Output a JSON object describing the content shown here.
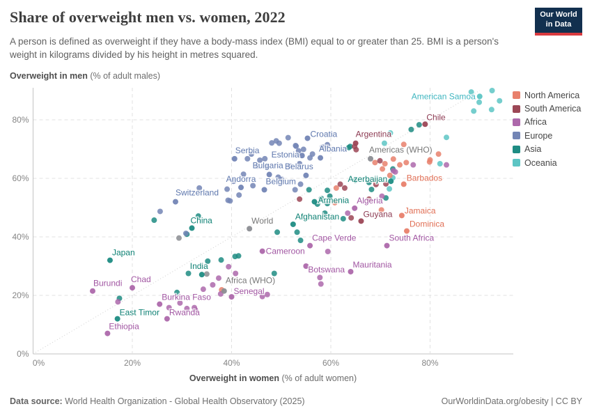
{
  "header": {
    "title": "Share of overweight men vs. women, 2022",
    "subtitle": "A person is defined as overweight if they have a body-mass index (BMI) equal to or greater than 25. BMI is a person's weight in kilograms divided by his height in metres squared.",
    "logo_line1": "Our World",
    "logo_line2": "in Data",
    "logo_bg": "#12304f",
    "logo_accent": "#d93a3f"
  },
  "footer": {
    "source_prefix": "Data source:",
    "source_text": " World Health Organization - Global Health Observatory (2025)",
    "license_text": "OurWorldinData.org/obesity | CC BY"
  },
  "chart_data": {
    "type": "scatter",
    "title": "Share of overweight men vs. women, 2022",
    "xlabel_bold": "Overweight in women",
    "xlabel_rest": " (% of adult women)",
    "ylabel_bold": "Overweight in men",
    "ylabel_rest": " (% of adult males)",
    "xlim": [
      0,
      95
    ],
    "ylim": [
      0,
      91
    ],
    "xticks": [
      0,
      20,
      40,
      60,
      80
    ],
    "yticks": [
      0,
      20,
      40,
      60,
      80
    ],
    "tick_suffix": "%",
    "grid": true,
    "identity_line": true,
    "legend_position": "right",
    "colors": {
      "NA": {
        "dot": "#e8806c",
        "label": "#e06e54"
      },
      "SA": {
        "dot": "#9c4756",
        "label": "#8c3a52"
      },
      "AF": {
        "dot": "#ad68ab",
        "label": "#a156a2"
      },
      "EU": {
        "dot": "#7385b5",
        "label": "#5e77ad"
      },
      "AS": {
        "dot": "#1e8c83",
        "label": "#0e8174"
      },
      "OC": {
        "dot": "#5dc5c4",
        "label": "#3fb6c0"
      },
      "AGG": {
        "dot": "#8b8d92",
        "label": "#777777"
      }
    },
    "legend": [
      {
        "code": "NA",
        "label": "North America"
      },
      {
        "code": "SA",
        "label": "South America"
      },
      {
        "code": "AF",
        "label": "Africa"
      },
      {
        "code": "EU",
        "label": "Europe"
      },
      {
        "code": "AS",
        "label": "Asia"
      },
      {
        "code": "OC",
        "label": "Oceania"
      }
    ],
    "points": [
      [
        92.5,
        90,
        "OC"
      ],
      [
        88.3,
        89.5,
        "OC"
      ],
      [
        94,
        86.5,
        "OC"
      ],
      [
        89.9,
        86,
        "OC"
      ],
      [
        88.8,
        83,
        "OC"
      ],
      [
        92.4,
        83.5,
        "OC"
      ],
      [
        83.3,
        74,
        "OC"
      ],
      [
        82,
        65,
        "OC"
      ],
      [
        72,
        75.5,
        "OC"
      ],
      [
        70.8,
        72,
        "OC"
      ],
      [
        71.8,
        56.4,
        "OC"
      ],
      [
        72.5,
        60.2,
        "OC"
      ],
      [
        77.8,
        78.3,
        "AS"
      ],
      [
        76.2,
        76.7,
        "AS"
      ],
      [
        63.9,
        70.9,
        "AS"
      ],
      [
        63.6,
        70.5,
        "AS"
      ],
      [
        72.5,
        63.2,
        "AS"
      ],
      [
        64.9,
        59.3,
        "AS"
      ],
      [
        67.7,
        58.6,
        "AS"
      ],
      [
        68.2,
        56.2,
        "AS"
      ],
      [
        71.1,
        53.3,
        "AS"
      ],
      [
        59.8,
        53.9,
        "AS"
      ],
      [
        58.1,
        53.1,
        "AS"
      ],
      [
        59.3,
        51.4,
        "AS"
      ],
      [
        59.3,
        55.9,
        "AS"
      ],
      [
        57.3,
        51.2,
        "AS"
      ],
      [
        62.5,
        46.2,
        "AS"
      ],
      [
        58.8,
        48.1,
        "AS"
      ],
      [
        55.6,
        56.1,
        "AS"
      ],
      [
        49.2,
        41.6,
        "AS"
      ],
      [
        53.2,
        41.6,
        "AS"
      ],
      [
        53.9,
        38.8,
        "AS"
      ],
      [
        33.3,
        47.1,
        "AS"
      ],
      [
        31,
        40.9,
        "AS"
      ],
      [
        24.4,
        45.7,
        "AS"
      ],
      [
        31.3,
        27.5,
        "AS"
      ],
      [
        35.2,
        31.7,
        "AS"
      ],
      [
        37.9,
        32.1,
        "AS"
      ],
      [
        40.7,
        33.3,
        "AS"
      ],
      [
        41.4,
        33.5,
        "AS"
      ],
      [
        48.6,
        27.5,
        "AS"
      ],
      [
        17.4,
        19,
        "AS"
      ],
      [
        29,
        21,
        "AS"
      ],
      [
        74.7,
        71.6,
        "NA"
      ],
      [
        81.7,
        68.3,
        "NA"
      ],
      [
        80,
        66.3,
        "NA"
      ],
      [
        68.9,
        65.4,
        "NA"
      ],
      [
        70.9,
        65,
        "NA"
      ],
      [
        72.6,
        66.6,
        "NA"
      ],
      [
        73.9,
        64.6,
        "NA"
      ],
      [
        75.2,
        65.4,
        "NA"
      ],
      [
        79.9,
        65.6,
        "NA"
      ],
      [
        70.4,
        63.2,
        "NA"
      ],
      [
        71.9,
        61,
        "NA"
      ],
      [
        69,
        59,
        "NA"
      ],
      [
        61.1,
        56.7,
        "NA"
      ],
      [
        60.8,
        51.7,
        "NA"
      ],
      [
        70.2,
        49.2,
        "NA"
      ],
      [
        38,
        21.9,
        "NA"
      ],
      [
        64.8,
        70.9,
        "SA"
      ],
      [
        65.1,
        69.8,
        "SA"
      ],
      [
        69.9,
        66,
        "SA"
      ],
      [
        71.1,
        58.1,
        "SA"
      ],
      [
        69.1,
        57.9,
        "SA"
      ],
      [
        67.7,
        52.9,
        "SA"
      ],
      [
        61.9,
        58,
        "SA"
      ],
      [
        62.8,
        56.7,
        "SA"
      ],
      [
        53.7,
        52.9,
        "SA"
      ],
      [
        64.1,
        46.5,
        "SA"
      ],
      [
        76.6,
        64.6,
        "AF"
      ],
      [
        83.3,
        64.6,
        "AF"
      ],
      [
        73,
        62.2,
        "AF"
      ],
      [
        72.6,
        62.6,
        "AF"
      ],
      [
        70.3,
        53.9,
        "AF"
      ],
      [
        59.4,
        35,
        "AF"
      ],
      [
        57.8,
        26.1,
        "AF"
      ],
      [
        58,
        23.9,
        "AF"
      ],
      [
        63.4,
        48.1,
        "AF"
      ],
      [
        39.4,
        29.8,
        "AF"
      ],
      [
        40.8,
        27.5,
        "AF"
      ],
      [
        36.2,
        23.6,
        "AF"
      ],
      [
        34.3,
        22.1,
        "AF"
      ],
      [
        37.8,
        20.5,
        "AF"
      ],
      [
        37.4,
        25.9,
        "AF"
      ],
      [
        32.7,
        15,
        "AF"
      ],
      [
        27.4,
        15.8,
        "AF"
      ],
      [
        29.6,
        17.4,
        "AF"
      ],
      [
        31,
        15.5,
        "AF"
      ],
      [
        32.5,
        15.8,
        "AF"
      ],
      [
        17.1,
        17.8,
        "AF"
      ],
      [
        46.2,
        19.6,
        "AF"
      ],
      [
        47.2,
        20.3,
        "AF"
      ],
      [
        49,
        72.8,
        "EU"
      ],
      [
        51.4,
        73.9,
        "EU"
      ],
      [
        53,
        71,
        "EU"
      ],
      [
        48.1,
        72.1,
        "EU"
      ],
      [
        49.6,
        72,
        "EU"
      ],
      [
        52.9,
        71.2,
        "EU"
      ],
      [
        58.3,
        70.7,
        "EU"
      ],
      [
        59.3,
        71.5,
        "EU"
      ],
      [
        53.5,
        69.4,
        "EU"
      ],
      [
        54.5,
        69.9,
        "EU"
      ],
      [
        56.3,
        68.3,
        "EU"
      ],
      [
        55.8,
        67,
        "EU"
      ],
      [
        44,
        68.3,
        "EU"
      ],
      [
        43.2,
        66.7,
        "EU"
      ],
      [
        45.7,
        66.2,
        "EU"
      ],
      [
        46.7,
        66.7,
        "EU"
      ],
      [
        47.1,
        63.8,
        "EU"
      ],
      [
        45.2,
        64.2,
        "EU"
      ],
      [
        51.7,
        64.2,
        "EU"
      ],
      [
        53.7,
        65,
        "EU"
      ],
      [
        49.4,
        60.4,
        "EU"
      ],
      [
        50.2,
        59.6,
        "EU"
      ],
      [
        42.4,
        61.4,
        "EU"
      ],
      [
        40.4,
        59,
        "EU"
      ],
      [
        44.3,
        57.5,
        "EU"
      ],
      [
        53.9,
        58,
        "EU"
      ],
      [
        52.8,
        56.1,
        "EU"
      ],
      [
        39.3,
        52.5,
        "EU"
      ],
      [
        39.7,
        52.3,
        "EU"
      ],
      [
        41.5,
        54.3,
        "EU"
      ],
      [
        33.5,
        56.7,
        "EU"
      ],
      [
        39.1,
        56.3,
        "EU"
      ],
      [
        25.6,
        48.7,
        "EU"
      ],
      [
        30.8,
        41.2,
        "EU"
      ],
      [
        29.4,
        39.6,
        "AGG"
      ],
      [
        35,
        27.3,
        "AGG"
      ],
      [
        90,
        88,
        "OC",
        "American Samoa",
        "end",
        -6,
        4
      ],
      [
        79,
        78.5,
        "SA",
        "Chile",
        "start",
        2,
        -6
      ],
      [
        65,
        72,
        "SA",
        "Argentina",
        "start",
        0,
        -9
      ],
      [
        55.3,
        73.7,
        "EU",
        "Croatia",
        "start",
        4,
        -2
      ],
      [
        68,
        66.7,
        "AGG",
        "Americas (WHO)",
        "start",
        -2,
        -9
      ],
      [
        40.6,
        66.7,
        "EU",
        "Serbia",
        "start",
        1,
        -8
      ],
      [
        54.2,
        67.8,
        "EU",
        "Estonia",
        "end",
        -4,
        3
      ],
      [
        57.9,
        67,
        "EU",
        "Albania",
        "start",
        -2,
        -9
      ],
      [
        47.6,
        61.3,
        "EU",
        "Bulgaria",
        "middle",
        -2,
        -9
      ],
      [
        55,
        61,
        "EU",
        "Belarus",
        "middle",
        -10,
        -9
      ],
      [
        72.1,
        59,
        "AS",
        "Azerbaijan",
        "end",
        -5,
        1
      ],
      [
        74.7,
        58,
        "NA",
        "Barbados",
        "start",
        4,
        -5
      ],
      [
        41.9,
        56.9,
        "EU",
        "Andorra",
        "middle",
        0,
        -8
      ],
      [
        46.6,
        56.1,
        "EU",
        "Belgium",
        "start",
        2,
        -8
      ],
      [
        28.7,
        52,
        "EU",
        "Switzerland",
        "start",
        0,
        -9
      ],
      [
        56.7,
        52,
        "AS",
        "Armenia",
        "start",
        5,
        2
      ],
      [
        64.8,
        49.8,
        "AF",
        "Algeria",
        "start",
        3,
        -7
      ],
      [
        74.3,
        47.3,
        "NA",
        "Jamaica",
        "start",
        4,
        -3
      ],
      [
        66.1,
        45.4,
        "SA",
        "Guyana",
        "start",
        3,
        -6
      ],
      [
        32,
        43,
        "AS",
        "China",
        "start",
        -2,
        -7
      ],
      [
        43.6,
        42.8,
        "AGG",
        "World",
        "start",
        3,
        -7
      ],
      [
        52.4,
        44.3,
        "AS",
        "Afghanistan",
        "start",
        3,
        -7
      ],
      [
        75.3,
        42,
        "NA",
        "Dominica",
        "start",
        4,
        -6
      ],
      [
        55.8,
        37,
        "AF",
        "Cape Verde",
        "start",
        3,
        -7
      ],
      [
        71.3,
        37,
        "AF",
        "South Africa",
        "start",
        3,
        -7
      ],
      [
        15.5,
        32,
        "AS",
        "Japan",
        "start",
        3,
        -7
      ],
      [
        46.2,
        35.1,
        "AF",
        "Cameroon",
        "start",
        5,
        4
      ],
      [
        34,
        27.1,
        "AS",
        "India",
        "middle",
        -4,
        -8
      ],
      [
        55,
        30,
        "AF",
        "Botswana",
        "start",
        3,
        9
      ],
      [
        64,
        28.1,
        "AF",
        "Mauritania",
        "start",
        3,
        -6
      ],
      [
        12,
        21.5,
        "AF",
        "Burundi",
        "start",
        1,
        -7
      ],
      [
        20,
        22.6,
        "AF",
        "Chad",
        "start",
        -2,
        -8
      ],
      [
        38.5,
        21.5,
        "AGG",
        "Africa (WHO)",
        "start",
        2,
        -11
      ],
      [
        25.5,
        17,
        "AF",
        "Burkina Faso",
        "start",
        3,
        -6
      ],
      [
        40,
        19.5,
        "AF",
        "Senegal",
        "start",
        3,
        -4
      ],
      [
        17,
        12,
        "AS",
        "East Timor",
        "start",
        3,
        -5
      ],
      [
        27,
        12,
        "AF",
        "Rwanda",
        "start",
        3,
        -5
      ],
      [
        15,
        7,
        "AF",
        "Ethiopia",
        "start",
        2,
        -6
      ]
    ]
  }
}
